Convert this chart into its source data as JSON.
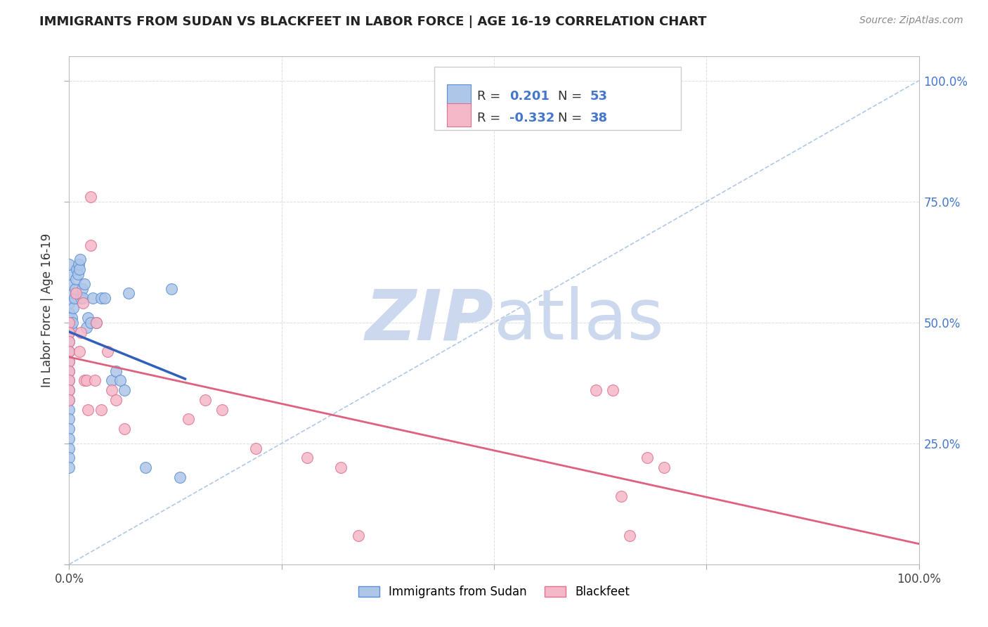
{
  "title": "IMMIGRANTS FROM SUDAN VS BLACKFEET IN LABOR FORCE | AGE 16-19 CORRELATION CHART",
  "source": "Source: ZipAtlas.com",
  "ylabel": "In Labor Force | Age 16-19",
  "xlim": [
    0.0,
    1.0
  ],
  "ylim": [
    0.0,
    1.05
  ],
  "legend_r_sudan": "0.201",
  "legend_n_sudan": "53",
  "legend_r_blackfeet": "-0.332",
  "legend_n_blackfeet": "38",
  "color_sudan_fill": "#aec6e8",
  "color_sudan_edge": "#5b8fd4",
  "color_blackfeet_fill": "#f5b8c8",
  "color_blackfeet_edge": "#e07090",
  "color_line_sudan": "#3060bb",
  "color_line_blackfeet": "#e06080",
  "color_diagonal": "#b0c8e8",
  "background": "#ffffff",
  "grid_color": "#dddddd",
  "right_tick_color": "#4477cc",
  "sudan_x": [
    0.0,
    0.0,
    0.0,
    0.0,
    0.0,
    0.0,
    0.0,
    0.0,
    0.0,
    0.0,
    0.0,
    0.0,
    0.0,
    0.0,
    0.0,
    0.0,
    0.0,
    0.0,
    0.0,
    0.0,
    0.0,
    0.0,
    0.002,
    0.003,
    0.004,
    0.005,
    0.006,
    0.007,
    0.008,
    0.009,
    0.01,
    0.011,
    0.012,
    0.013,
    0.014,
    0.015,
    0.016,
    0.018,
    0.02,
    0.022,
    0.025,
    0.028,
    0.032,
    0.038,
    0.042,
    0.05,
    0.055,
    0.06,
    0.065,
    0.07,
    0.09,
    0.12,
    0.13
  ],
  "sudan_y": [
    0.44,
    0.42,
    0.4,
    0.38,
    0.36,
    0.34,
    0.32,
    0.3,
    0.28,
    0.26,
    0.24,
    0.22,
    0.48,
    0.5,
    0.46,
    0.52,
    0.54,
    0.56,
    0.58,
    0.6,
    0.62,
    0.2,
    0.49,
    0.51,
    0.5,
    0.53,
    0.55,
    0.57,
    0.59,
    0.61,
    0.6,
    0.62,
    0.61,
    0.63,
    0.55,
    0.57,
    0.55,
    0.58,
    0.49,
    0.51,
    0.5,
    0.55,
    0.5,
    0.55,
    0.55,
    0.38,
    0.4,
    0.38,
    0.36,
    0.56,
    0.2,
    0.57,
    0.18
  ],
  "blackfeet_x": [
    0.0,
    0.0,
    0.0,
    0.0,
    0.0,
    0.0,
    0.0,
    0.0,
    0.0,
    0.008,
    0.012,
    0.014,
    0.016,
    0.018,
    0.02,
    0.022,
    0.025,
    0.025,
    0.03,
    0.032,
    0.038,
    0.045,
    0.05,
    0.055,
    0.065,
    0.14,
    0.16,
    0.18,
    0.22,
    0.28,
    0.32,
    0.34,
    0.62,
    0.64,
    0.65,
    0.66,
    0.68,
    0.7
  ],
  "blackfeet_y": [
    0.5,
    0.48,
    0.46,
    0.44,
    0.42,
    0.4,
    0.38,
    0.36,
    0.34,
    0.56,
    0.44,
    0.48,
    0.54,
    0.38,
    0.38,
    0.32,
    0.76,
    0.66,
    0.38,
    0.5,
    0.32,
    0.44,
    0.36,
    0.34,
    0.28,
    0.3,
    0.34,
    0.32,
    0.24,
    0.22,
    0.2,
    0.06,
    0.36,
    0.36,
    0.14,
    0.06,
    0.22,
    0.2
  ],
  "watermark_zip": "ZIP",
  "watermark_atlas": "atlas",
  "watermark_color": "#ccd8ee"
}
